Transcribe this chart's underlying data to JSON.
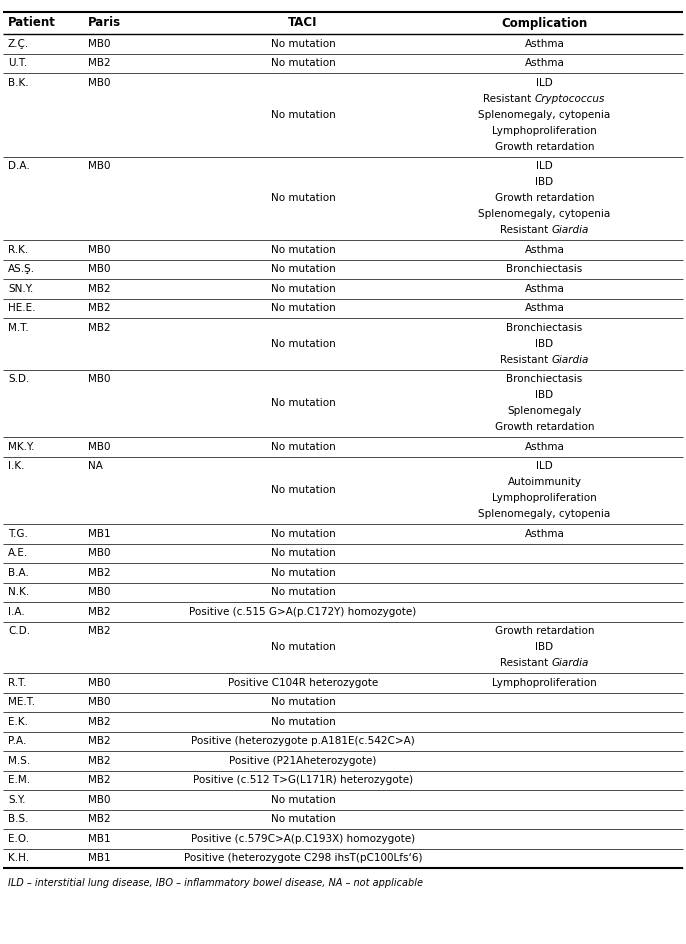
{
  "headers": [
    "Patient",
    "Paris",
    "TACI",
    "Complication"
  ],
  "footnote": "ILD – interstitial lung disease, IBO – inflammatory bowel disease, NA – not applicable",
  "rows": [
    {
      "patient": "Z.Ç.",
      "paris": "MB0",
      "taci": "No mutation",
      "complication": [
        [
          "Asthma",
          false
        ]
      ],
      "n_lines": 1
    },
    {
      "patient": "U.T.",
      "paris": "MB2",
      "taci": "No mutation",
      "complication": [
        [
          "Asthma",
          false
        ]
      ],
      "n_lines": 1
    },
    {
      "patient": "B.K.",
      "paris": "MB0",
      "taci": "No mutation",
      "complication": [
        [
          "ILD",
          false
        ],
        [
          "Resistant ",
          false,
          "Cryptococcus",
          true
        ],
        [
          "Splenomegaly, cytopenia",
          false
        ],
        [
          "Lymphoproliferation",
          false
        ],
        [
          "Growth retardation",
          false
        ]
      ],
      "n_lines": 5
    },
    {
      "patient": "D.A.",
      "paris": "MB0",
      "taci": "No mutation",
      "complication": [
        [
          "ILD",
          false
        ],
        [
          "IBD",
          false
        ],
        [
          "Growth retardation",
          false
        ],
        [
          "Splenomegaly, cytopenia",
          false
        ],
        [
          "Resistant ",
          false,
          "Giardia",
          true
        ]
      ],
      "n_lines": 5
    },
    {
      "patient": "R.K.",
      "paris": "MB0",
      "taci": "No mutation",
      "complication": [
        [
          "Asthma",
          false
        ]
      ],
      "n_lines": 1
    },
    {
      "patient": "AS.Ş.",
      "paris": "MB0",
      "taci": "No mutation",
      "complication": [
        [
          "Bronchiectasis",
          false
        ]
      ],
      "n_lines": 1
    },
    {
      "patient": "SN.Y.",
      "paris": "MB2",
      "taci": "No mutation",
      "complication": [
        [
          "Asthma",
          false
        ]
      ],
      "n_lines": 1
    },
    {
      "patient": "HE.E.",
      "paris": "MB2",
      "taci": "No mutation",
      "complication": [
        [
          "Asthma",
          false
        ]
      ],
      "n_lines": 1
    },
    {
      "patient": "M.T.",
      "paris": "MB2",
      "taci": "No mutation",
      "complication": [
        [
          "Bronchiectasis",
          false
        ],
        [
          "IBD",
          false
        ],
        [
          "Resistant ",
          false,
          "Giardia",
          true
        ]
      ],
      "n_lines": 3
    },
    {
      "patient": "S.D.",
      "paris": "MB0",
      "taci": "No mutation",
      "complication": [
        [
          "Bronchiectasis",
          false
        ],
        [
          "IBD",
          false
        ],
        [
          "Splenomegaly",
          false
        ],
        [
          "Growth retardation",
          false
        ]
      ],
      "n_lines": 4
    },
    {
      "patient": "MK.Y.",
      "paris": "MB0",
      "taci": "No mutation",
      "complication": [
        [
          "Asthma",
          false
        ]
      ],
      "n_lines": 1
    },
    {
      "patient": "I.K.",
      "paris": "NA",
      "taci": "No mutation",
      "complication": [
        [
          "ILD",
          false
        ],
        [
          "Autoimmunity",
          false
        ],
        [
          "Lymphoproliferation",
          false
        ],
        [
          "Splenomegaly, cytopenia",
          false
        ]
      ],
      "n_lines": 4
    },
    {
      "patient": "T.G.",
      "paris": "MB1",
      "taci": "No mutation",
      "complication": [
        [
          "Asthma",
          false
        ]
      ],
      "n_lines": 1
    },
    {
      "patient": "A.E.",
      "paris": "MB0",
      "taci": "No mutation",
      "complication": [],
      "n_lines": 1
    },
    {
      "patient": "B.A.",
      "paris": "MB2",
      "taci": "No mutation",
      "complication": [],
      "n_lines": 1
    },
    {
      "patient": "N.K.",
      "paris": "MB0",
      "taci": "No mutation",
      "complication": [],
      "n_lines": 1
    },
    {
      "patient": "I.A.",
      "paris": "MB2",
      "taci": "Positive (c.515 G>A(p.C172Y) homozygote)",
      "complication": [],
      "n_lines": 1
    },
    {
      "patient": "C.D.",
      "paris": "MB2",
      "taci": "No mutation",
      "complication": [
        [
          "Growth retardation",
          false
        ],
        [
          "IBD",
          false
        ],
        [
          "Resistant ",
          false,
          "Giardia",
          true
        ]
      ],
      "n_lines": 3
    },
    {
      "patient": "R.T.",
      "paris": "MB0",
      "taci": "Positive C104R heterozygote",
      "complication": [
        [
          "Lymphoproliferation",
          false
        ]
      ],
      "n_lines": 1
    },
    {
      "patient": "ME.T.",
      "paris": "MB0",
      "taci": "No mutation",
      "complication": [],
      "n_lines": 1
    },
    {
      "patient": "E.K.",
      "paris": "MB2",
      "taci": "No mutation",
      "complication": [],
      "n_lines": 1
    },
    {
      "patient": "P.A.",
      "paris": "MB2",
      "taci": "Positive (heterozygote p.A181E(c.542C>A)",
      "complication": [],
      "n_lines": 1
    },
    {
      "patient": "M.S.",
      "paris": "MB2",
      "taci": "Positive (P21Aheterozygote)",
      "complication": [],
      "n_lines": 1
    },
    {
      "patient": "E.M.",
      "paris": "MB2",
      "taci": "Positive (c.512 T>G(L171R) heterozygote)",
      "complication": [],
      "n_lines": 1
    },
    {
      "patient": "S.Y.",
      "paris": "MB0",
      "taci": "No mutation",
      "complication": [],
      "n_lines": 1
    },
    {
      "patient": "B.S.",
      "paris": "MB2",
      "taci": "No mutation",
      "complication": [],
      "n_lines": 1
    },
    {
      "patient": "E.O.",
      "paris": "MB1",
      "taci": "Positive (c.579C>A(p.C193X) homozygote)",
      "complication": [],
      "n_lines": 1
    },
    {
      "patient": "K.H.",
      "paris": "MB1",
      "taci": "Positive (heterozygote C298 ihsT(pC100Lfs‘6)",
      "complication": [],
      "n_lines": 1
    }
  ]
}
